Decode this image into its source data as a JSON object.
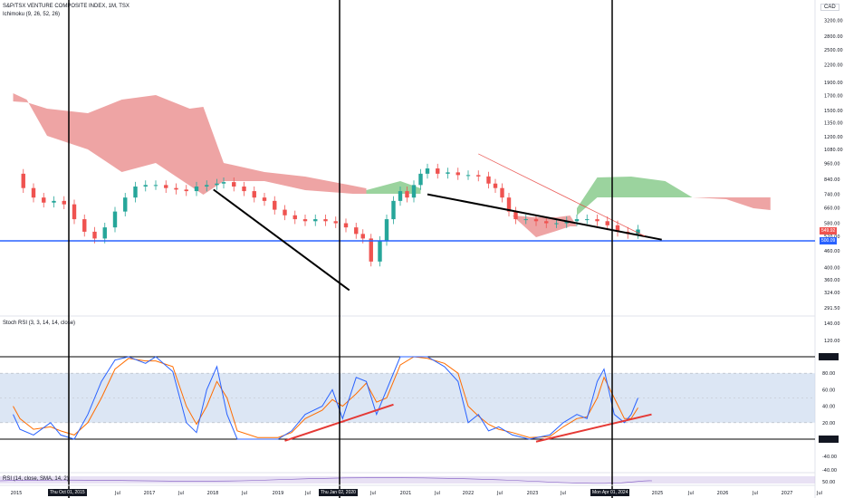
{
  "header": {
    "title": "S&P/TSX VENTURE COMPOSITE INDEX, 1M, TSX",
    "ichimoku": "Ichimoku (9, 26, 52, 26)",
    "stoch_label": "Stoch RSI (3, 3, 14, 14, close)",
    "rsi_label": "RSI (14, close, SMA, 14, 2)",
    "currency": "CAD"
  },
  "price_labels": {
    "current": "549.92",
    "support": "500.09",
    "current_color": "#ef5350",
    "support_color": "#2962ff"
  },
  "vlines": [
    "Thu Oct 01, 2015",
    "Thu Jan 02, 2020",
    "Mon Apr 01, 2024"
  ],
  "colors": {
    "bull": "#26a69a",
    "bear": "#ef5350",
    "cloud_bear": "#e57373",
    "cloud_bull": "#66bb6a",
    "support": "#2962ff",
    "stoch_k": "#2962ff",
    "stoch_d": "#ff6d00",
    "trend": "#000000",
    "div": "#e53935",
    "band": "#c5d6ec"
  },
  "chart_data": [
    {
      "type": "candlestick",
      "title": "S&P/TSX VENTURE COMPOSITE INDEX, 1M, TSX",
      "scale": "log",
      "currency": "CAD",
      "y_ticks": [
        3200,
        2800,
        2500,
        2200,
        1900,
        1700,
        1500,
        1350,
        1200,
        1080,
        960,
        840,
        740,
        660,
        580,
        520,
        460,
        400,
        360,
        324,
        291.5,
        140,
        120
      ],
      "x_ticks": [
        "2015",
        "2016",
        "Jul",
        "2017",
        "Jul",
        "2018",
        "Jul",
        "2019",
        "Jul",
        "2021",
        "Jul",
        "2022",
        "Jul",
        "2023",
        "Jul",
        "2025",
        "Jul",
        "2026",
        "Jul",
        "2027",
        "Jul"
      ],
      "current_price": 549.92,
      "support_price": 500.09,
      "series": [
        {
          "name": "price",
          "points": [
            [
              2014.9,
              880
            ],
            [
              2015.05,
              780
            ],
            [
              2015.2,
              720
            ],
            [
              2015.35,
              690
            ],
            [
              2015.5,
              700
            ],
            [
              2015.65,
              680
            ],
            [
              2015.8,
              600
            ],
            [
              2015.95,
              540
            ],
            [
              2016.1,
              510
            ],
            [
              2016.25,
              560
            ],
            [
              2016.4,
              640
            ],
            [
              2016.55,
              720
            ],
            [
              2016.7,
              790
            ],
            [
              2016.85,
              800
            ],
            [
              2017.0,
              800
            ],
            [
              2017.15,
              780
            ],
            [
              2017.3,
              770
            ],
            [
              2017.45,
              760
            ],
            [
              2017.6,
              790
            ],
            [
              2017.75,
              800
            ],
            [
              2017.9,
              810
            ],
            [
              2018.0,
              820
            ],
            [
              2018.15,
              790
            ],
            [
              2018.3,
              760
            ],
            [
              2018.45,
              720
            ],
            [
              2018.6,
              700
            ],
            [
              2018.75,
              650
            ],
            [
              2018.9,
              620
            ],
            [
              2019.05,
              600
            ],
            [
              2019.2,
              590
            ],
            [
              2019.35,
              600
            ],
            [
              2019.5,
              590
            ],
            [
              2019.65,
              580
            ],
            [
              2019.8,
              560
            ],
            [
              2019.95,
              530
            ],
            [
              2020.05,
              510
            ],
            [
              2020.17,
              420
            ],
            [
              2020.3,
              500
            ],
            [
              2020.4,
              600
            ],
            [
              2020.5,
              700
            ],
            [
              2020.6,
              760
            ],
            [
              2020.7,
              720
            ],
            [
              2020.8,
              800
            ],
            [
              2020.9,
              880
            ],
            [
              2021.0,
              920
            ],
            [
              2021.15,
              880
            ],
            [
              2021.3,
              890
            ],
            [
              2021.45,
              870
            ],
            [
              2021.6,
              870
            ],
            [
              2021.75,
              860
            ],
            [
              2021.9,
              810
            ],
            [
              2022.0,
              780
            ],
            [
              2022.1,
              720
            ],
            [
              2022.2,
              640
            ],
            [
              2022.3,
              600
            ],
            [
              2022.45,
              600
            ],
            [
              2022.6,
              590
            ],
            [
              2022.75,
              580
            ],
            [
              2022.9,
              580
            ],
            [
              2023.05,
              590
            ],
            [
              2023.2,
              600
            ],
            [
              2023.35,
              600
            ],
            [
              2023.5,
              590
            ],
            [
              2023.65,
              570
            ],
            [
              2023.8,
              540
            ],
            [
              2023.95,
              530
            ],
            [
              2024.1,
              550
            ]
          ]
        },
        {
          "name": "trendline",
          "points": [
            [
              2017.85,
              770
            ],
            [
              2019.85,
              330
            ]
          ]
        },
        {
          "name": "trendline",
          "points": [
            [
              2021.0,
              740
            ],
            [
              2024.45,
              505
            ]
          ]
        },
        {
          "name": "trendline",
          "points": [
            [
              2021.75,
              1040
            ],
            [
              2024.2,
              520
            ]
          ]
        }
      ]
    },
    {
      "type": "line",
      "title": "Stoch RSI (3, 3, 14, 14, close)",
      "y_ticks": [
        100,
        80,
        60,
        40,
        20,
        0
      ],
      "band": [
        20,
        80
      ],
      "series": [
        {
          "name": "%K",
          "points": [
            [
              2014.9,
              30
            ],
            [
              2015.0,
              12
            ],
            [
              2015.2,
              5
            ],
            [
              2015.45,
              20
            ],
            [
              2015.6,
              5
            ],
            [
              2015.8,
              0
            ],
            [
              2016.0,
              30
            ],
            [
              2016.2,
              70
            ],
            [
              2016.4,
              96
            ],
            [
              2016.6,
              100
            ],
            [
              2016.85,
              92
            ],
            [
              2017.0,
              100
            ],
            [
              2017.25,
              82
            ],
            [
              2017.45,
              20
            ],
            [
              2017.6,
              8
            ],
            [
              2017.75,
              60
            ],
            [
              2017.9,
              88
            ],
            [
              2018.05,
              30
            ],
            [
              2018.2,
              0
            ],
            [
              2018.5,
              0
            ],
            [
              2018.8,
              0
            ],
            [
              2019.0,
              10
            ],
            [
              2019.2,
              30
            ],
            [
              2019.45,
              40
            ],
            [
              2019.6,
              60
            ],
            [
              2019.75,
              25
            ],
            [
              2019.95,
              75
            ],
            [
              2020.1,
              70
            ],
            [
              2020.25,
              30
            ],
            [
              2020.4,
              60
            ],
            [
              2020.6,
              100
            ],
            [
              2020.8,
              100
            ],
            [
              2021.0,
              100
            ],
            [
              2021.25,
              88
            ],
            [
              2021.45,
              70
            ],
            [
              2021.6,
              20
            ],
            [
              2021.75,
              30
            ],
            [
              2021.9,
              10
            ],
            [
              2022.05,
              15
            ],
            [
              2022.25,
              5
            ],
            [
              2022.5,
              0
            ],
            [
              2022.8,
              5
            ],
            [
              2023.0,
              20
            ],
            [
              2023.2,
              30
            ],
            [
              2023.35,
              25
            ],
            [
              2023.5,
              70
            ],
            [
              2023.6,
              85
            ],
            [
              2023.75,
              30
            ],
            [
              2023.9,
              20
            ],
            [
              2024.0,
              30
            ],
            [
              2024.1,
              50
            ]
          ]
        },
        {
          "name": "%D",
          "points": [
            [
              2014.9,
              40
            ],
            [
              2015.0,
              25
            ],
            [
              2015.2,
              12
            ],
            [
              2015.45,
              15
            ],
            [
              2015.6,
              10
            ],
            [
              2015.8,
              5
            ],
            [
              2016.0,
              20
            ],
            [
              2016.2,
              50
            ],
            [
              2016.4,
              85
            ],
            [
              2016.6,
              98
            ],
            [
              2016.85,
              95
            ],
            [
              2017.0,
              95
            ],
            [
              2017.25,
              88
            ],
            [
              2017.45,
              40
            ],
            [
              2017.6,
              18
            ],
            [
              2017.75,
              40
            ],
            [
              2017.9,
              70
            ],
            [
              2018.05,
              50
            ],
            [
              2018.2,
              10
            ],
            [
              2018.5,
              2
            ],
            [
              2018.8,
              2
            ],
            [
              2019.0,
              8
            ],
            [
              2019.2,
              25
            ],
            [
              2019.45,
              35
            ],
            [
              2019.6,
              48
            ],
            [
              2019.75,
              40
            ],
            [
              2019.95,
              55
            ],
            [
              2020.1,
              68
            ],
            [
              2020.25,
              45
            ],
            [
              2020.4,
              50
            ],
            [
              2020.6,
              90
            ],
            [
              2020.8,
              100
            ],
            [
              2021.0,
              98
            ],
            [
              2021.25,
              92
            ],
            [
              2021.45,
              80
            ],
            [
              2021.6,
              40
            ],
            [
              2021.75,
              28
            ],
            [
              2021.9,
              18
            ],
            [
              2022.05,
              12
            ],
            [
              2022.25,
              8
            ],
            [
              2022.5,
              2
            ],
            [
              2022.8,
              3
            ],
            [
              2023.0,
              15
            ],
            [
              2023.2,
              25
            ],
            [
              2023.35,
              27
            ],
            [
              2023.5,
              50
            ],
            [
              2023.6,
              75
            ],
            [
              2023.75,
              50
            ],
            [
              2023.9,
              25
            ],
            [
              2024.0,
              25
            ],
            [
              2024.1,
              38
            ]
          ]
        },
        {
          "name": "divergence",
          "points": [
            [
              2018.9,
              -2
            ],
            [
              2020.5,
              42
            ]
          ]
        },
        {
          "name": "divergence",
          "points": [
            [
              2022.6,
              -3
            ],
            [
              2024.3,
              30
            ]
          ]
        }
      ]
    }
  ]
}
